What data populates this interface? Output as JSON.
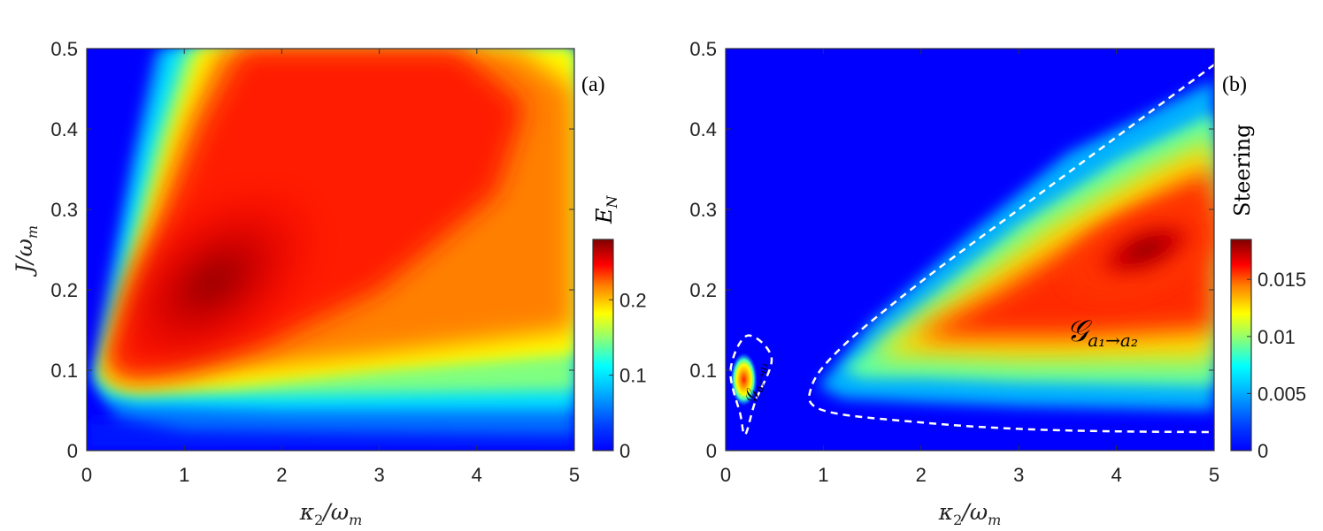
{
  "figure": {
    "panel_a": {
      "tag": "(a)",
      "colorbar_label": "E",
      "colorbar_label_sub": "N",
      "x_label": "κ",
      "x_label_sub": "2",
      "x_label_rest": "/ω",
      "x_label_sub2": "m",
      "y_label": "J/ω",
      "y_label_sub": "m"
    },
    "panel_b": {
      "tag": "(b)",
      "colorbar_label": "Steering",
      "x_label": "κ",
      "x_label_sub": "2",
      "x_label_rest": "/ω",
      "x_label_sub2": "m",
      "annotation_main": "𝒢",
      "annotation_main_sub": "a₁→a₂",
      "annotation_small": "𝒢",
      "annotation_small_sub": "a₂→a₁"
    }
  },
  "chart_data": [
    {
      "type": "heatmap",
      "title": "",
      "tag": "(a)",
      "xlabel": "κ2/ωm",
      "ylabel": "J/ωm",
      "xlim": [
        0,
        5
      ],
      "ylim": [
        0,
        0.5
      ],
      "x_ticks": [
        "0",
        "1",
        "2",
        "3",
        "4",
        "5"
      ],
      "y_ticks": [
        "0",
        "0.1",
        "0.2",
        "0.3",
        "0.4",
        "0.5"
      ],
      "colormap": "jet",
      "colorbar": {
        "label": "E_N",
        "range": [
          0,
          0.28
        ],
        "ticks": [
          "0",
          "0.1",
          "0.2"
        ]
      },
      "features": {
        "peak": {
          "x": 1.3,
          "y": 0.21,
          "value": 0.28
        },
        "ridge": "wedge-shaped high region opening from (0.1, 0.09) toward large κ2 and J",
        "edge_points": [
          {
            "x": 0.1,
            "y": 0.09
          },
          {
            "x": 0.9,
            "y": 0.5
          },
          {
            "x": 5,
            "y": 0.08
          }
        ]
      }
    },
    {
      "type": "heatmap",
      "title": "",
      "tag": "(b)",
      "xlabel": "κ2/ωm",
      "ylabel": "",
      "xlim": [
        0,
        5
      ],
      "ylim": [
        0,
        0.5
      ],
      "x_ticks": [
        "0",
        "1",
        "2",
        "3",
        "4",
        "5"
      ],
      "y_ticks": [
        "0",
        "0.1",
        "0.2",
        "0.3",
        "0.4",
        "0.5"
      ],
      "colormap": "jet",
      "colorbar": {
        "label": "Steering",
        "range": [
          0,
          0.0185
        ],
        "ticks": [
          "0",
          "0.005",
          "0.01",
          "0.015"
        ]
      },
      "features": {
        "main_peak": {
          "x": 4.3,
          "y": 0.25,
          "value": 0.0185
        },
        "small_peak": {
          "x": 0.15,
          "y": 0.095,
          "value": 0.015
        },
        "boundary_main": [
          {
            "x": 5.0,
            "y": 0.48
          },
          {
            "x": 4.0,
            "y": 0.39
          },
          {
            "x": 3.0,
            "y": 0.3
          },
          {
            "x": 2.0,
            "y": 0.21
          },
          {
            "x": 1.2,
            "y": 0.13
          },
          {
            "x": 0.88,
            "y": 0.08
          },
          {
            "x": 1.0,
            "y": 0.05
          },
          {
            "x": 2.0,
            "y": 0.035
          },
          {
            "x": 3.0,
            "y": 0.027
          },
          {
            "x": 4.0,
            "y": 0.024
          },
          {
            "x": 5.0,
            "y": 0.023
          }
        ],
        "boundary_small": [
          {
            "x": 0.05,
            "y": 0.1
          },
          {
            "x": 0.22,
            "y": 0.143
          },
          {
            "x": 0.47,
            "y": 0.115
          },
          {
            "x": 0.3,
            "y": 0.06
          },
          {
            "x": 0.2,
            "y": 0.02
          },
          {
            "x": 0.15,
            "y": 0.045
          }
        ],
        "annotations": [
          "𝒢 a1→a2",
          "𝒢 a2→a1"
        ]
      }
    }
  ]
}
